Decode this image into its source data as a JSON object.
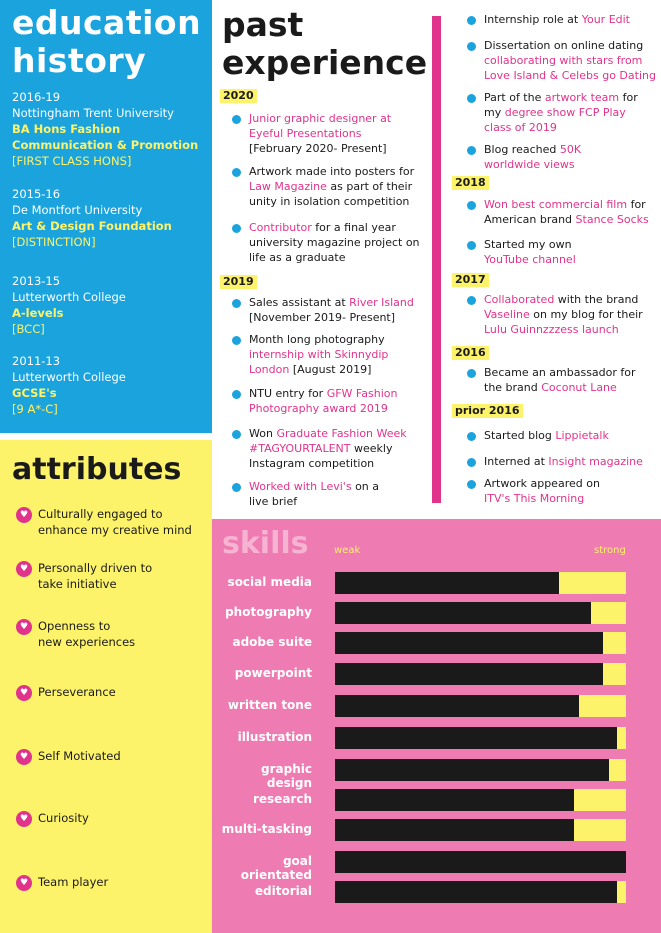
{
  "education": {
    "title_line1": "education",
    "title_line2": "history",
    "entries": [
      {
        "years": "2016-19",
        "school": "Nottingham Trent University",
        "course_line1": "BA Hons Fashion",
        "course_line2": "Communication & Promotion",
        "result": "[FIRST CLASS HONS]"
      },
      {
        "years": "2015-16",
        "school": "De Montfort University",
        "course_line1": "Art & Design Foundation",
        "result": "[DISTINCTION]"
      },
      {
        "years": "2013-15",
        "school": "Lutterworth College",
        "course_line1": "A-levels",
        "result": "[BCC]"
      },
      {
        "years": "2011-13",
        "school": "Lutterworth College",
        "course_line1": "GCSE's",
        "result": "[9 A*-C]"
      }
    ]
  },
  "attributes": {
    "title": "attributes",
    "items": [
      [
        "Culturally engaged to",
        "enhance my creative mind"
      ],
      [
        "Personally driven to",
        "take initiative"
      ],
      [
        "Openness to",
        "new experiences"
      ],
      [
        "Perseverance"
      ],
      [
        "Self Motivated"
      ],
      [
        "Curiosity"
      ],
      [
        "Team player"
      ]
    ]
  },
  "experience": {
    "title_line1": "past",
    "title_line2": "experience",
    "years": [
      "2020",
      "2019",
      "2018",
      "2017",
      "2016",
      "prior 2016"
    ],
    "items": {
      "e1_a": "Junior graphic designer at",
      "e1_b": "Eyeful Presentations",
      "e1_c": "[February 2020- Present]",
      "e2_a": "Artwork made into posters for",
      "e2_b": "Law Magazine",
      "e2_c": " as part of their",
      "e2_d": "unity in isolation competition",
      "e3_a": "Contributor",
      "e3_b": " for a final year",
      "e3_c": "university magazine project on",
      "e3_d": "life as a graduate",
      "e4_a": "Sales assistant at ",
      "e4_b": "River Island",
      "e4_c": "[November 2019- Present]",
      "e5_a": "Month long photography",
      "e5_b": "internship with Skinnydip",
      "e5_c": "London",
      "e5_d": " [August 2019]",
      "e6_a": "NTU entry for ",
      "e6_b": "GFW Fashion",
      "e6_c": "Photography award 2019",
      "e7_a": "Won ",
      "e7_b": "Graduate Fashion Week",
      "e7_c": "#TAGYOURTALENT",
      "e7_d": " weekly",
      "e7_e": "Instagram competition",
      "e8_a": "Worked with Levi's",
      "e8_b": " on a",
      "e8_c": "live brief",
      "r1_a": "Internship role at ",
      "r1_b": "Your Edit",
      "r2_a": "Dissertation on online dating",
      "r2_b": "collaborating with stars from",
      "r2_c": "Love Island & Celebs go Dating",
      "r3_a": "Part of the ",
      "r3_b": "artwork team",
      "r3_c": " for",
      "r3_d": "my ",
      "r3_e": "degree show FCP Play",
      "r3_f": "class of 2019",
      "r4_a": "Blog reached ",
      "r4_b": "50K",
      "r4_c": "worldwide views",
      "r5_a": "Won best commercial film",
      "r5_b": " for",
      "r5_c": "American brand ",
      "r5_d": "Stance Socks",
      "r6_a": "Started my own",
      "r6_b": "YouTube channel",
      "r7_a": "Collaborated",
      "r7_b": " with the brand",
      "r7_c": "Vaseline",
      "r7_d": " on my blog for their",
      "r7_e": "Lulu Guinnzzzess launch",
      "r8_a": "Became an ambassador for",
      "r8_b": "the brand ",
      "r8_c": "Coconut Lane",
      "r9_a": "Started blog ",
      "r9_b": "Lippietalk",
      "r10_a": "Interned at ",
      "r10_b": "Insight magazine",
      "r11_a": "Artwork appeared on",
      "r11_b": "ITV's This Morning"
    }
  },
  "skills": {
    "title": "skills",
    "weak_label": "weak",
    "strong_label": "strong",
    "list": [
      {
        "name": "social media",
        "level": 0.77
      },
      {
        "name": "photography",
        "level": 0.88
      },
      {
        "name": "adobe suite",
        "level": 0.92
      },
      {
        "name": "powerpoint",
        "level": 0.92
      },
      {
        "name": "written tone",
        "level": 0.84
      },
      {
        "name": "illustration",
        "level": 0.97
      },
      {
        "name": "graphic design",
        "level": 0.94
      },
      {
        "name": "research",
        "level": 0.82
      },
      {
        "name": "multi-tasking",
        "level": 0.82
      },
      {
        "name": "goal orientated",
        "level": 1.0
      },
      {
        "name": "editorial",
        "level": 0.97
      }
    ]
  },
  "colors": {
    "blue": "#1ba3dd",
    "yellow": "#fdf36a",
    "pink": "#ee7bb1",
    "magenta": "#e0338c",
    "dark": "#1a1a1a"
  }
}
